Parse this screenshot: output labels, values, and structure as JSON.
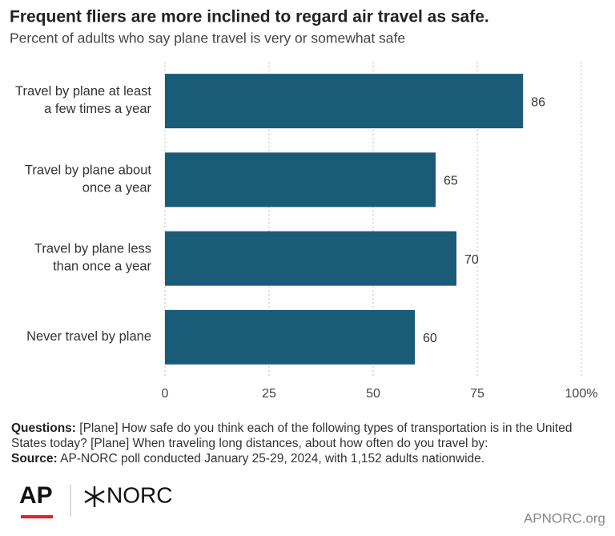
{
  "chart_data": {
    "type": "barh",
    "title": "Frequent fliers are more inclined to regard air travel as safe.",
    "subtitle": "Percent of adults who say plane travel is very or somewhat safe",
    "categories": [
      "Travel by plane at least a few times a year",
      "Travel by plane about once a year",
      "Travel by plane less than once a year",
      "Never travel by plane"
    ],
    "values": [
      86,
      65,
      70,
      60
    ],
    "color": "#1a5b78",
    "xlim": [
      0,
      100
    ],
    "xticks": [
      0,
      25,
      50,
      75,
      {
        "value": 100,
        "label": "100%"
      }
    ],
    "grid": true
  },
  "notes": [
    {
      "label": "Questions:",
      "text": "[Plane] How safe do you think each of the following types of transportation is in the United States today? [Plane] When traveling long distances, about how often do you travel by:"
    },
    {
      "label": "Source:",
      "text": "AP-NORC poll conducted January 25-29, 2024, with 1,152 adults nationwide."
    }
  ],
  "footer": {
    "logo_left": "AP",
    "logo_right": "NORC",
    "site": "APNORC.org"
  }
}
